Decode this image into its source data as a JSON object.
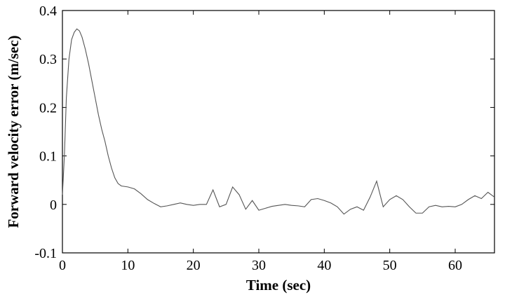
{
  "chart_data": {
    "type": "line",
    "title": "",
    "xlabel": "Time (sec)",
    "ylabel": "Forward velocity error (m/sec)",
    "xlim": [
      0,
      66
    ],
    "ylim": [
      -0.1,
      0.4
    ],
    "xticks": [
      0,
      10,
      20,
      30,
      40,
      50,
      60
    ],
    "yticks": [
      -0.1,
      0,
      0.1,
      0.2,
      0.3,
      0.4
    ],
    "xtick_labels": [
      "0",
      "10",
      "20",
      "30",
      "40",
      "50",
      "60"
    ],
    "ytick_labels": [
      "-0.1",
      "0",
      "0.1",
      "0.2",
      "0.3",
      "0.4"
    ],
    "grid": false,
    "line_color": "#555555",
    "series": [
      {
        "x": [
          0,
          0.3,
          0.6,
          1.0,
          1.4,
          1.8,
          2.2,
          2.6,
          3.0,
          3.5,
          4.0,
          4.5,
          5.0,
          5.5,
          6.0,
          6.5,
          7.0,
          7.5,
          8.0,
          8.5,
          9.0,
          10.0,
          11.0,
          12.0,
          13.0,
          14.0,
          15.0,
          16.0,
          17.0,
          18.0,
          19.0,
          20.0,
          21.0,
          22.0,
          23.0,
          24.0,
          25.0,
          26.0,
          27.0,
          28.0,
          29.0,
          30.0,
          31.0,
          32.0,
          33.0,
          34.0,
          35.0,
          36.0,
          37.0,
          38.0,
          39.0,
          40.0,
          41.0,
          42.0,
          43.0,
          44.0,
          45.0,
          46.0,
          47.0,
          48.0,
          49.0,
          50.0,
          51.0,
          52.0,
          53.0,
          54.0,
          55.0,
          56.0,
          57.0,
          58.0,
          59.0,
          60.0,
          61.0,
          62.0,
          63.0,
          64.0,
          65.0,
          66.0
        ],
        "y": [
          0.02,
          0.1,
          0.22,
          0.3,
          0.34,
          0.355,
          0.362,
          0.358,
          0.345,
          0.32,
          0.29,
          0.255,
          0.22,
          0.185,
          0.155,
          0.13,
          0.1,
          0.075,
          0.055,
          0.043,
          0.038,
          0.036,
          0.032,
          0.022,
          0.01,
          0.002,
          -0.005,
          -0.003,
          0.0,
          0.003,
          0.0,
          -0.002,
          0.0,
          0.0,
          0.03,
          -0.005,
          0.0,
          0.036,
          0.02,
          -0.01,
          0.008,
          -0.012,
          -0.008,
          -0.004,
          -0.002,
          0.0,
          -0.002,
          -0.003,
          -0.005,
          0.01,
          0.012,
          0.008,
          0.003,
          -0.005,
          -0.02,
          -0.01,
          -0.005,
          -0.012,
          0.015,
          0.048,
          -0.005,
          0.01,
          0.018,
          0.01,
          -0.005,
          -0.018,
          -0.018,
          -0.005,
          -0.002,
          -0.005,
          -0.004,
          -0.005,
          0.0,
          0.01,
          0.018,
          0.012,
          0.025,
          0.015
        ]
      }
    ]
  }
}
